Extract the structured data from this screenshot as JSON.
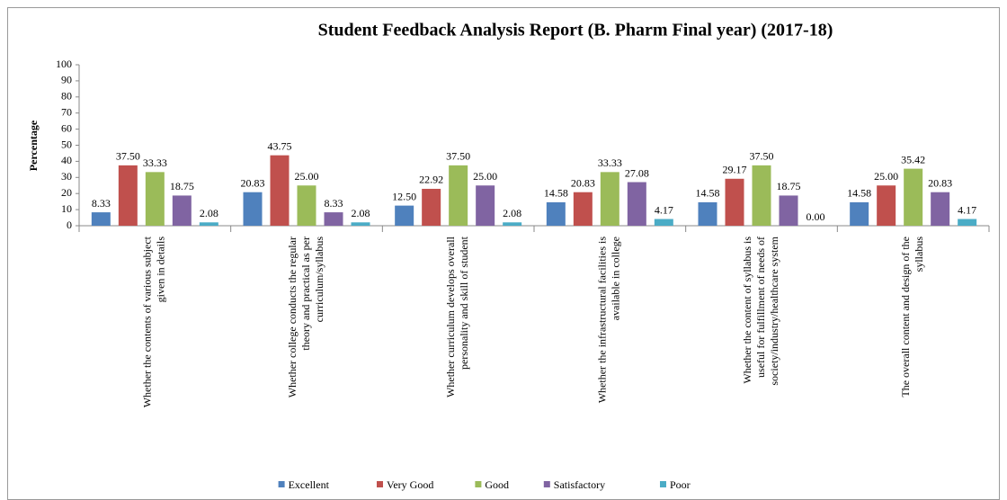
{
  "chart_data": {
    "type": "bar",
    "title": "Student Feedback Analysis Report (B. Pharm Final year) (2017-18)",
    "y_label": "Percentage",
    "categories": [
      [
        "Whether the contents of various subject",
        "given in details"
      ],
      [
        "Whether college conducts the regular",
        "theory and practical as per",
        "curriculum/syllabus"
      ],
      [
        "Whether curriculum  develops overall",
        "personality and skill of student"
      ],
      [
        "Whether the infrastructural facilities is",
        "available in college"
      ],
      [
        "Whether the content of syllabus is",
        "useful for fulfillment of needs of",
        "society/industry/healthcare system"
      ],
      [
        "The overall content and design of the",
        "syllabus"
      ]
    ],
    "series": [
      {
        "name": "Excellent",
        "color": "#4f81bd",
        "values": [
          8.33,
          20.83,
          12.5,
          14.58,
          14.58,
          14.58
        ],
        "value_labels": [
          "8.33",
          "20.83",
          "12.50",
          "14.58",
          "14.58",
          "14.58"
        ]
      },
      {
        "name": "Very Good",
        "color": "#c0504d",
        "values": [
          37.5,
          43.75,
          22.92,
          20.83,
          29.17,
          25
        ],
        "value_labels": [
          "37.50",
          "43.75",
          "22.92",
          "20.83",
          "29.17",
          "25.00"
        ]
      },
      {
        "name": "Good",
        "color": "#9bbb59",
        "values": [
          33.33,
          25,
          37.5,
          33.33,
          37.5,
          35.42
        ],
        "value_labels": [
          "33.33",
          "25.00",
          "37.50",
          "33.33",
          "37.50",
          "35.42"
        ]
      },
      {
        "name": "Satisfactory",
        "color": "#8064a2",
        "values": [
          18.75,
          8.33,
          25,
          27.08,
          18.75,
          20.83
        ],
        "value_labels": [
          "18.75",
          "8.33",
          "25.00",
          "27.08",
          "18.75",
          "20.83"
        ]
      },
      {
        "name": "Poor",
        "color": "#4bacc6",
        "values": [
          2.08,
          2.08,
          2.08,
          4.17,
          0,
          4.17
        ],
        "value_labels": [
          "2.08",
          "2.08",
          "2.08",
          "4.17",
          "0.00",
          "4.17"
        ]
      }
    ],
    "ylim": [
      0,
      100
    ],
    "yticks": [
      0,
      10,
      20,
      30,
      40,
      50,
      60,
      70,
      80,
      90,
      100
    ],
    "grid": false,
    "legend": "bottom"
  }
}
